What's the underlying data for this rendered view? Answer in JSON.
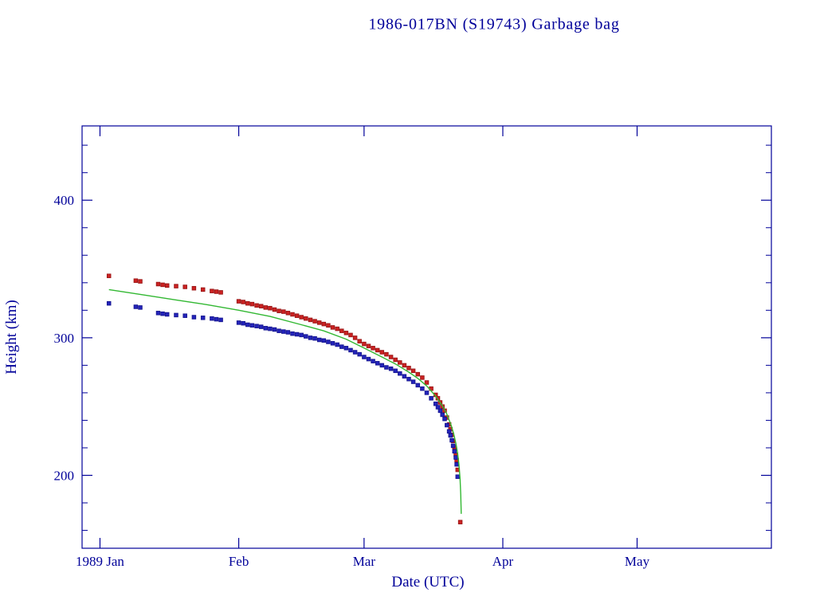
{
  "colors": {
    "axis": "#000099",
    "text": "#000099",
    "background": "#ffffff",
    "red": "#cc2222",
    "red_edge": "#991515",
    "blue": "#2424bb",
    "blue_edge": "#15158f",
    "green": "#33b833"
  },
  "chart_data": {
    "type": "scatter",
    "title": "1986-017BN (S19743) Garbage bag",
    "xlabel": "Date (UTC)",
    "ylabel": "Height (km)",
    "x_unit": "days since 1989-01-01",
    "xlim": [
      -4,
      150
    ],
    "ylim": [
      147,
      454
    ],
    "grid": false,
    "legend": "none",
    "x_ticks": [
      {
        "t": 0,
        "label": "1989 Jan"
      },
      {
        "t": 31,
        "label": "Feb"
      },
      {
        "t": 59,
        "label": "Mar"
      },
      {
        "t": 90,
        "label": "Apr"
      },
      {
        "t": 120,
        "label": "May"
      }
    ],
    "y_ticks": [
      {
        "v": 200,
        "label": "200"
      },
      {
        "v": 300,
        "label": "300"
      },
      {
        "v": 400,
        "label": "400"
      }
    ],
    "y_minor": {
      "from": 160,
      "to": 440,
      "step": 20
    },
    "series": [
      {
        "name": "red-squares",
        "type": "scatter",
        "color": "#cc2222",
        "edge": "#991515",
        "points": [
          [
            2,
            345
          ],
          [
            8,
            341.5
          ],
          [
            9,
            341
          ],
          [
            13,
            339
          ],
          [
            14,
            338.5
          ],
          [
            15,
            338
          ],
          [
            17,
            337.5
          ],
          [
            19,
            337
          ],
          [
            21,
            336
          ],
          [
            23,
            335
          ],
          [
            25,
            334
          ],
          [
            26,
            333.5
          ],
          [
            27,
            333
          ],
          [
            31,
            326.5
          ],
          [
            32,
            326
          ],
          [
            33,
            325
          ],
          [
            34,
            324.5
          ],
          [
            35,
            323.5
          ],
          [
            36,
            323
          ],
          [
            37,
            322
          ],
          [
            38,
            321.5
          ],
          [
            39,
            320.5
          ],
          [
            40,
            319.5
          ],
          [
            41,
            319
          ],
          [
            42,
            318
          ],
          [
            43,
            317
          ],
          [
            44,
            316
          ],
          [
            45,
            315
          ],
          [
            46,
            314
          ],
          [
            47,
            313
          ],
          [
            48,
            312
          ],
          [
            49,
            311
          ],
          [
            50,
            310
          ],
          [
            51,
            309
          ],
          [
            52,
            307.5
          ],
          [
            53,
            306.5
          ],
          [
            54,
            305
          ],
          [
            55,
            303.5
          ],
          [
            56,
            302
          ],
          [
            57,
            300
          ],
          [
            58,
            297.5
          ],
          [
            59,
            295.5
          ],
          [
            60,
            294
          ],
          [
            61,
            292.5
          ],
          [
            62,
            291
          ],
          [
            63,
            289.5
          ],
          [
            64,
            288
          ],
          [
            65,
            286
          ],
          [
            66,
            284
          ],
          [
            67,
            282
          ],
          [
            68,
            280
          ],
          [
            69,
            278
          ],
          [
            70,
            276
          ],
          [
            71,
            273.5
          ],
          [
            72,
            271
          ],
          [
            73,
            267.5
          ],
          [
            74,
            263
          ],
          [
            75,
            258.5
          ],
          [
            75.5,
            256
          ],
          [
            76,
            253
          ],
          [
            76.5,
            250
          ],
          [
            77,
            247
          ],
          [
            77.5,
            242
          ],
          [
            78,
            237
          ],
          [
            78.3,
            233.5
          ],
          [
            78.6,
            229.5
          ],
          [
            78.9,
            225
          ],
          [
            79.2,
            220.5
          ],
          [
            79.5,
            215
          ],
          [
            79.7,
            211
          ],
          [
            79.9,
            204
          ],
          [
            80.5,
            166
          ]
        ]
      },
      {
        "name": "blue-squares",
        "type": "scatter",
        "color": "#2424bb",
        "edge": "#15158f",
        "points": [
          [
            2,
            325
          ],
          [
            8,
            322.5
          ],
          [
            9,
            322
          ],
          [
            13,
            318
          ],
          [
            14,
            317.5
          ],
          [
            15,
            317
          ],
          [
            17,
            316.5
          ],
          [
            19,
            316
          ],
          [
            21,
            315
          ],
          [
            23,
            314.5
          ],
          [
            25,
            314
          ],
          [
            26,
            313.5
          ],
          [
            27,
            313
          ],
          [
            31,
            311
          ],
          [
            32,
            310.5
          ],
          [
            33,
            309.5
          ],
          [
            34,
            309
          ],
          [
            35,
            308.5
          ],
          [
            36,
            308
          ],
          [
            37,
            307
          ],
          [
            38,
            306.5
          ],
          [
            39,
            306
          ],
          [
            40,
            305
          ],
          [
            41,
            304.5
          ],
          [
            42,
            304
          ],
          [
            43,
            303
          ],
          [
            44,
            302.5
          ],
          [
            45,
            302
          ],
          [
            46,
            301
          ],
          [
            47,
            300
          ],
          [
            48,
            299.5
          ],
          [
            49,
            298.5
          ],
          [
            50,
            298
          ],
          [
            51,
            297
          ],
          [
            52,
            296
          ],
          [
            53,
            295
          ],
          [
            54,
            293.5
          ],
          [
            55,
            292.5
          ],
          [
            56,
            291
          ],
          [
            57,
            289.5
          ],
          [
            58,
            288
          ],
          [
            59,
            286
          ],
          [
            60,
            284.5
          ],
          [
            61,
            283
          ],
          [
            62,
            281.5
          ],
          [
            63,
            280
          ],
          [
            64,
            278.5
          ],
          [
            65,
            277.5
          ],
          [
            66,
            276
          ],
          [
            67,
            274
          ],
          [
            68,
            272
          ],
          [
            69,
            270
          ],
          [
            70,
            268
          ],
          [
            71,
            265.5
          ],
          [
            72,
            263
          ],
          [
            73,
            260
          ],
          [
            74,
            256
          ],
          [
            75,
            252
          ],
          [
            75.5,
            249.5
          ],
          [
            76,
            247
          ],
          [
            76.5,
            244
          ],
          [
            77,
            241
          ],
          [
            77.5,
            236.5
          ],
          [
            78,
            232
          ],
          [
            78.3,
            229
          ],
          [
            78.6,
            225.5
          ],
          [
            78.9,
            221.5
          ],
          [
            79.2,
            217.5
          ],
          [
            79.5,
            213
          ],
          [
            79.7,
            208
          ],
          [
            79.9,
            199
          ]
        ]
      },
      {
        "name": "green-line",
        "type": "line",
        "color": "#33b833",
        "points": [
          [
            2,
            335
          ],
          [
            10,
            331
          ],
          [
            17,
            327.5
          ],
          [
            24,
            324
          ],
          [
            31,
            320
          ],
          [
            38,
            315.5
          ],
          [
            45,
            309.5
          ],
          [
            50,
            305
          ],
          [
            55,
            299
          ],
          [
            59,
            292.5
          ],
          [
            63,
            286
          ],
          [
            66,
            281
          ],
          [
            69,
            275
          ],
          [
            71,
            270.5
          ],
          [
            73,
            265
          ],
          [
            75,
            257.5
          ],
          [
            76.5,
            250.5
          ],
          [
            77.5,
            244.5
          ],
          [
            78.5,
            236
          ],
          [
            79,
            230.5
          ],
          [
            79.5,
            223.5
          ],
          [
            79.9,
            216
          ],
          [
            80.2,
            208
          ],
          [
            80.45,
            198
          ],
          [
            80.6,
            186
          ],
          [
            80.7,
            172
          ]
        ]
      }
    ]
  }
}
